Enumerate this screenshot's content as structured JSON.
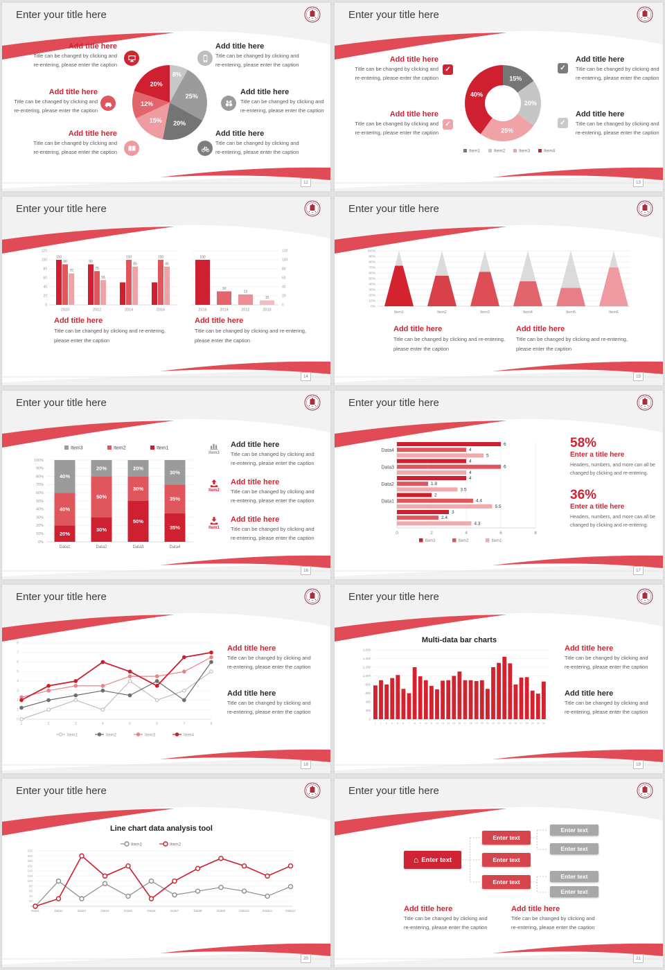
{
  "c": {
    "title": "Enter your title here",
    "add": "Add title here",
    "cap1a": "Title can be changed by clicking and",
    "cap1b": "re-entering, please enter the caption",
    "cap2a": "Title can be changed by clicking and re-entering,",
    "cap2b": "please enter the caption",
    "enter_title": "Enter a title here",
    "h1": "Headers, numbers, and more can all be",
    "h2": "changed by clicking and re-entering.",
    "etext": "Enter text",
    "mtitle": "Multi-data bar charts",
    "ltitle": "Line chart data analysis tool"
  },
  "pages": [
    "12",
    "13",
    "14",
    "15",
    "16",
    "17",
    "18",
    "19",
    "20",
    "21"
  ],
  "s5": {
    "labels": [
      "Item3",
      "Item2",
      "Item1"
    ]
  },
  "s6": {
    "pct1": "58%",
    "pct2": "36%"
  },
  "chart_data": [
    {
      "id": "pie6",
      "type": "pie",
      "title": "",
      "slices": [
        {
          "label": "8%",
          "value": 8,
          "color": "#C8C8C8"
        },
        {
          "label": "25%",
          "value": 25,
          "color": "#9B9B9B"
        },
        {
          "label": "20%",
          "value": 20,
          "color": "#747474"
        },
        {
          "label": "15%",
          "value": 15,
          "color": "#EF9CA0"
        },
        {
          "label": "12%",
          "value": 12,
          "color": "#E2646C"
        },
        {
          "label": "20%",
          "value": 20,
          "color": "#CE2030"
        }
      ]
    },
    {
      "id": "donut4",
      "type": "pie",
      "subtype": "donut",
      "slices": [
        {
          "label": "15%",
          "value": 15,
          "color": "#767676"
        },
        {
          "label": "20%",
          "value": 20,
          "color": "#C6C6C6"
        },
        {
          "label": "25%",
          "value": 25,
          "color": "#EFA3A7"
        },
        {
          "label": "40%",
          "value": 40,
          "color": "#CE2030"
        }
      ],
      "legend": [
        {
          "label": "Item1",
          "color": "#767676"
        },
        {
          "label": "Item2",
          "color": "#C6C6C6"
        },
        {
          "label": "Item3",
          "color": "#EFA3A7"
        },
        {
          "label": "Item4",
          "color": "#CE2030"
        }
      ]
    },
    {
      "id": "barsL",
      "type": "bar",
      "categories": [
        "2010",
        "2012",
        "2014",
        "2016"
      ],
      "series": [
        {
          "color": "#CE2030",
          "values": [
            100,
            90,
            50,
            50
          ]
        },
        {
          "color": "#E0565D",
          "values": [
            90,
            75,
            100,
            100
          ]
        },
        {
          "color": "#EFA3A7",
          "values": [
            70,
            55,
            85,
            85
          ]
        }
      ],
      "bar_labels": [
        [
          "100",
          "90",
          "70"
        ],
        [
          "90",
          "75",
          "55"
        ],
        [
          "",
          "100",
          "85"
        ],
        [
          "",
          "100",
          "85"
        ]
      ],
      "ylim": [
        0,
        120
      ],
      "yticks": [
        0,
        20,
        40,
        60,
        80,
        100,
        120
      ]
    },
    {
      "id": "barsR",
      "type": "bar",
      "categories": [
        "2016",
        "2014",
        "2012",
        "2010"
      ],
      "values": [
        100,
        30,
        23,
        10
      ],
      "bar_labels": [
        "100",
        "30",
        "23",
        "10"
      ],
      "colors": [
        "#CE2030",
        "#E2646C",
        "#EC8F94",
        "#F2BDC0"
      ],
      "ylim": [
        0,
        120
      ],
      "yticks": [
        0,
        20,
        40,
        60,
        80,
        100,
        120
      ],
      "axis_side": "right"
    },
    {
      "id": "cones",
      "type": "bar",
      "subtype": "cone",
      "categories": [
        "Item1",
        "Item2",
        "Item3",
        "Item4",
        "Item5",
        "Item6"
      ],
      "values": [
        73,
        55,
        62,
        45,
        33,
        70
      ],
      "colors": [
        "#D2232F",
        "#D8404A",
        "#DD4E56",
        "#E2646C",
        "#E87F86",
        "#EE9AA0"
      ],
      "cone_color": "#DBDBDB",
      "ylim": [
        0,
        100
      ]
    },
    {
      "id": "stacked",
      "type": "bar",
      "subtype": "stacked",
      "categories": [
        "Data1",
        "Data2",
        "Data3",
        "Data4"
      ],
      "series": [
        {
          "name": "Item1",
          "color": "#CE2030",
          "values": [
            20,
            30,
            50,
            35
          ]
        },
        {
          "name": "Item2",
          "color": "#E0565D",
          "values": [
            40,
            50,
            30,
            35
          ]
        },
        {
          "name": "Item3",
          "color": "#9B9B9B",
          "values": [
            40,
            20,
            20,
            30
          ]
        }
      ],
      "legend_order": [
        "Item3",
        "Item2",
        "Item1"
      ],
      "ylim": [
        0,
        100
      ]
    },
    {
      "id": "hbars",
      "type": "bar",
      "subtype": "horizontal",
      "groups": [
        {
          "label": "Data4",
          "values": [
            6,
            4,
            5
          ]
        },
        {
          "label": "Data3",
          "values": [
            4,
            6,
            4
          ]
        },
        {
          "label": "Data2",
          "values": [
            4,
            1.8,
            3.5
          ]
        },
        {
          "label": "Data1",
          "values": [
            2,
            4.4,
            5.5
          ]
        },
        {
          "label": "",
          "values": [
            3,
            2.4,
            4.3
          ]
        }
      ],
      "colors": [
        "#CE2030",
        "#E0565D",
        "#F0AAAE"
      ],
      "legend": [
        {
          "label": "Item3",
          "color": "#CE2030"
        },
        {
          "label": "Item2",
          "color": "#E0565D"
        },
        {
          "label": "Item1",
          "color": "#F0AAAE"
        }
      ],
      "xlim": [
        0,
        8
      ],
      "xticks": [
        0,
        2,
        4,
        6,
        8
      ]
    },
    {
      "id": "line8",
      "type": "line",
      "x": [
        1,
        2,
        3,
        4,
        5,
        6,
        7,
        8
      ],
      "ylim": [
        0,
        8
      ],
      "series": [
        {
          "name": "Item1",
          "color": "#BFBFBF",
          "marker": "open",
          "values": [
            0,
            1,
            2,
            1,
            4,
            2,
            3,
            5
          ]
        },
        {
          "name": "Item2",
          "color": "#6E6E6E",
          "marker": "solid",
          "values": [
            1.2,
            2,
            2.5,
            3,
            2.5,
            4,
            2,
            6
          ]
        },
        {
          "name": "Item3",
          "color": "#E8838A",
          "marker": "solid",
          "values": [
            2.3,
            3,
            3.5,
            3.5,
            4.5,
            4.5,
            5,
            6.5
          ]
        },
        {
          "name": "Item4",
          "color": "#CB1F2D",
          "marker": "solid",
          "values": [
            2,
            3.5,
            4,
            6,
            5,
            3.5,
            6.5,
            7
          ]
        }
      ]
    },
    {
      "id": "bars31",
      "type": "bar",
      "title": "Multi-data bar charts",
      "color": "#D2232F",
      "ylim": [
        0,
        1600
      ],
      "ytick_labels": [
        "0",
        "200",
        "400",
        "600",
        "800",
        "1,000",
        "1,200",
        "1,400",
        "1,600"
      ],
      "values": [
        780,
        900,
        800,
        950,
        1020,
        700,
        600,
        1200,
        990,
        900,
        770,
        690,
        890,
        900,
        1000,
        1100,
        900,
        900,
        880,
        900,
        700,
        1200,
        1300,
        1440,
        1290,
        800,
        960,
        970,
        660,
        590,
        870
      ]
    },
    {
      "id": "line12",
      "type": "line",
      "title": "Line chart data analysis tool",
      "ylim": [
        0,
        220
      ],
      "categories": [
        "Data1",
        "Data2",
        "Data3",
        "Data4",
        "Data5",
        "Data6",
        "Data7",
        "Data8",
        "Data9",
        "Data10",
        "Data11",
        "Data12"
      ],
      "series": [
        {
          "name": "Item1",
          "color": "#8C8C8C",
          "marker": "open",
          "values": [
            0,
            100,
            30,
            90,
            40,
            100,
            45,
            60,
            75,
            60,
            40,
            78
          ]
        },
        {
          "name": "Item2",
          "color": "#CB1F2D",
          "marker": "open",
          "values": [
            0,
            30,
            200,
            120,
            160,
            30,
            100,
            150,
            190,
            160,
            120,
            160
          ]
        }
      ]
    }
  ]
}
